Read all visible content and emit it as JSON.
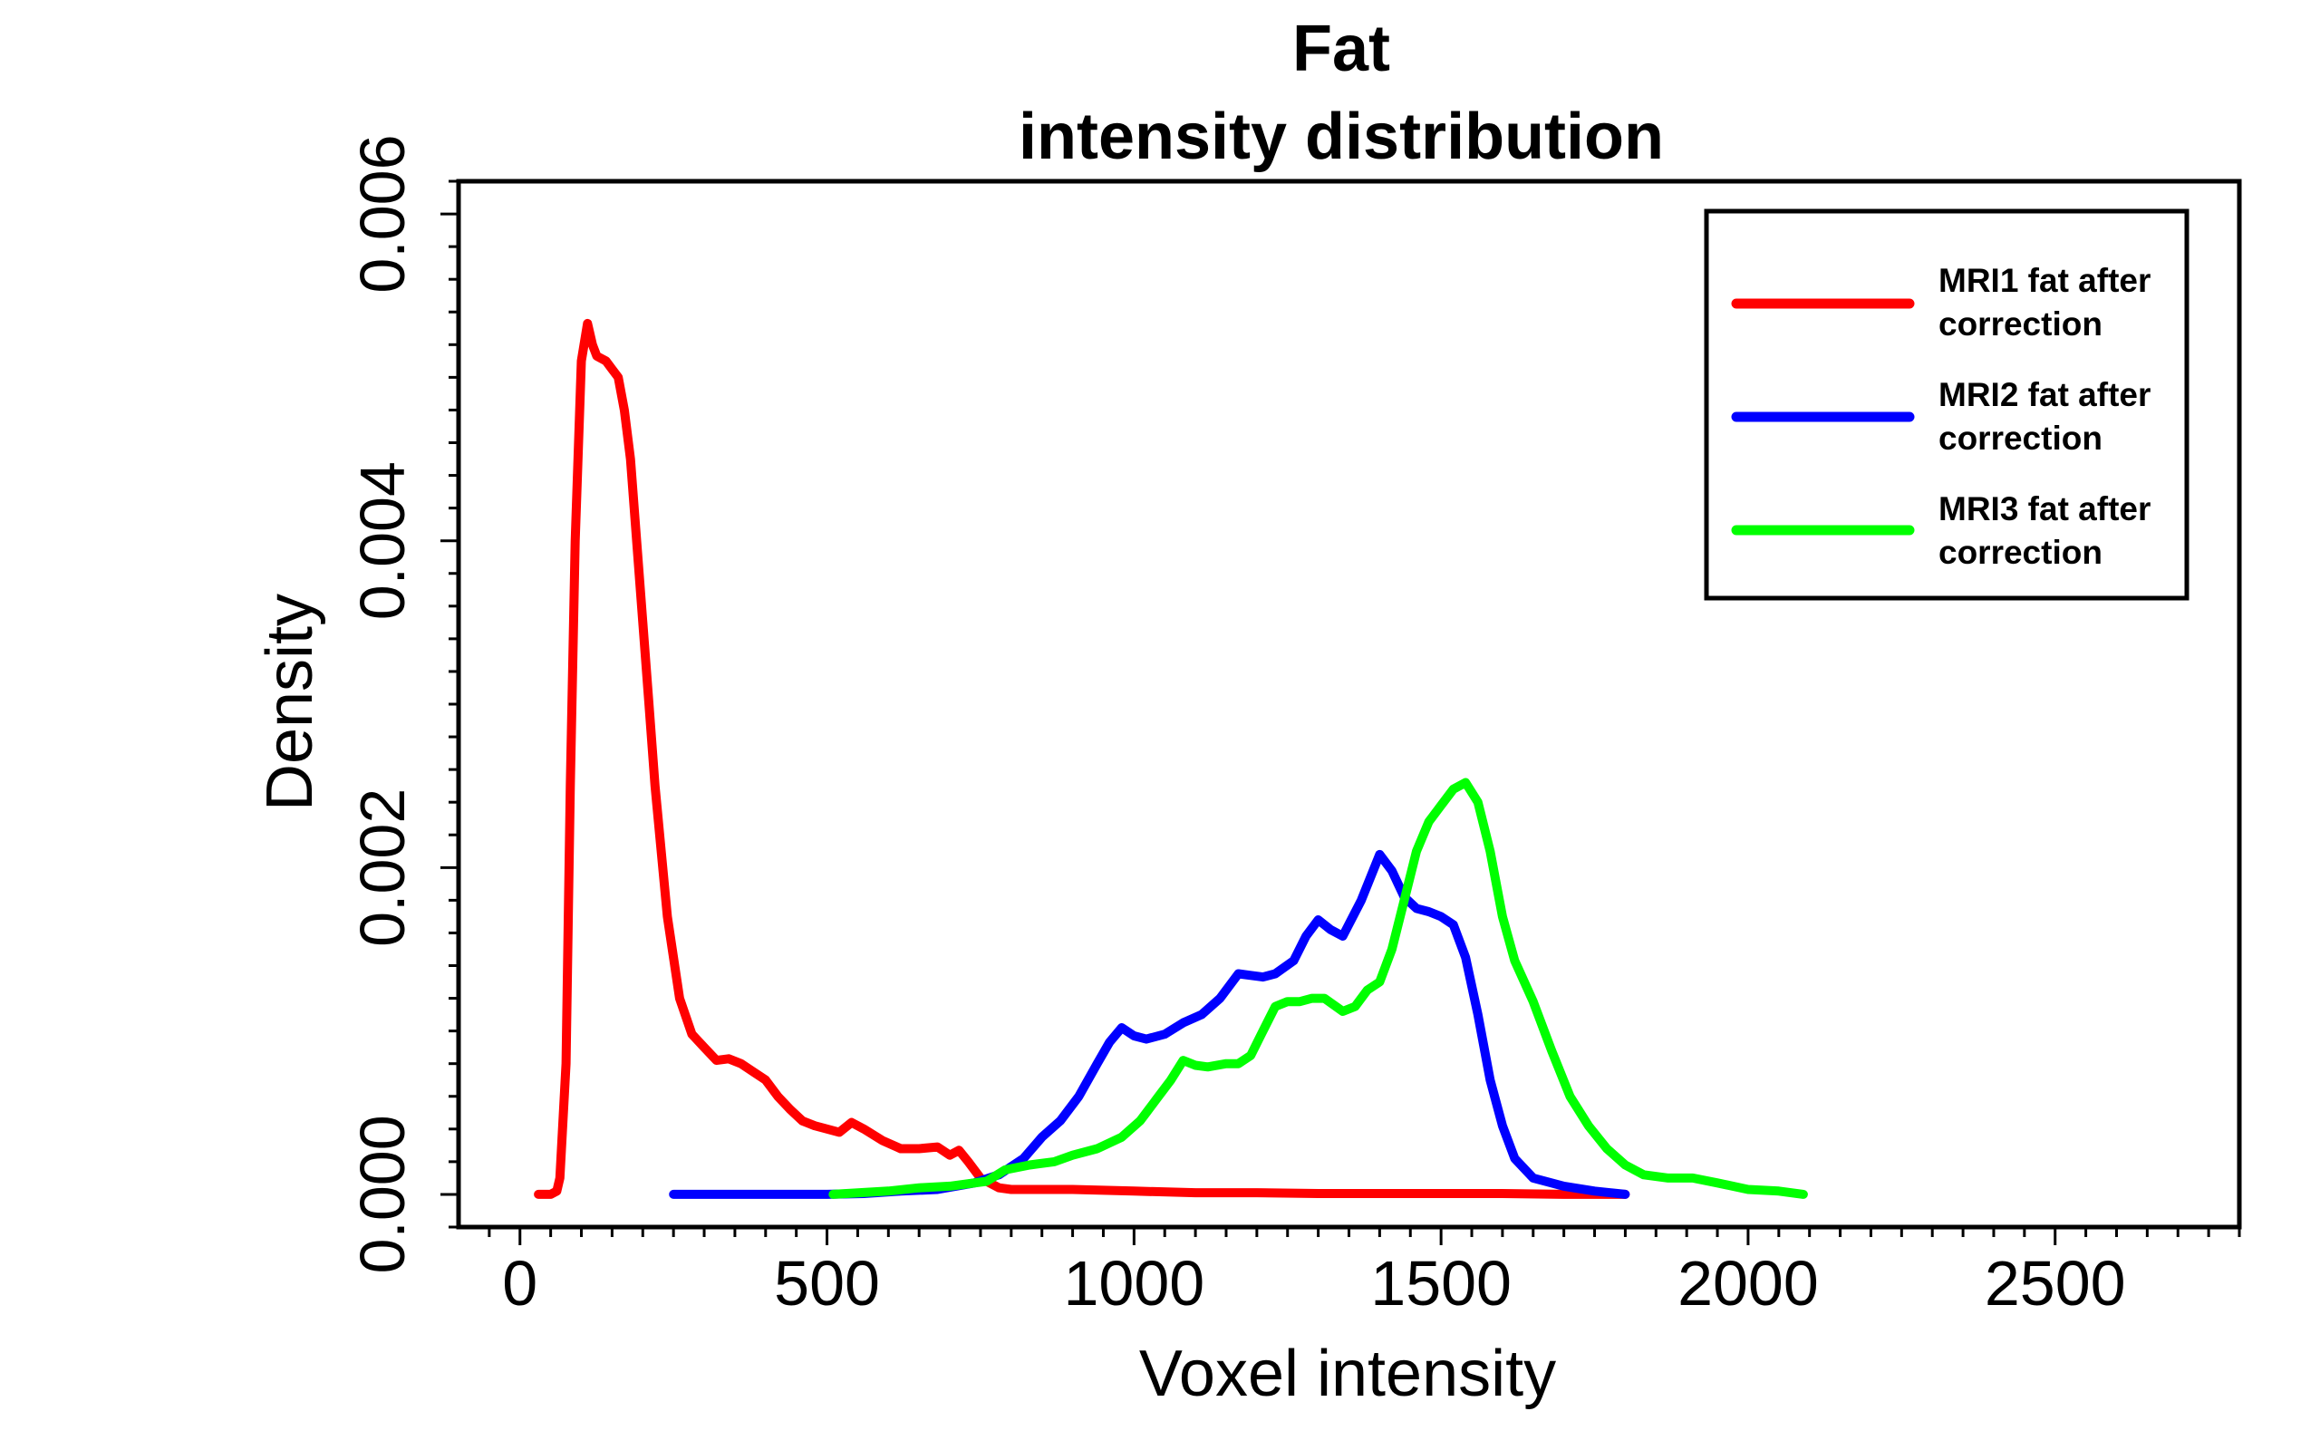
{
  "chart_data": {
    "type": "line",
    "title_line1": "Fat",
    "title_line2": "intensity distribution",
    "xlabel": "Voxel intensity",
    "ylabel": "Density",
    "xlim": [
      -100,
      2800
    ],
    "ylim": [
      -0.0002,
      0.0062
    ],
    "x_ticks": [
      0,
      500,
      1000,
      1500,
      2000,
      2500
    ],
    "x_tick_labels": [
      "0",
      "500",
      "1000",
      "1500",
      "2000",
      "2500"
    ],
    "y_ticks": [
      0.0,
      0.002,
      0.004,
      0.006
    ],
    "y_tick_labels": [
      "0.000",
      "0.002",
      "0.004",
      "0.006"
    ],
    "grid": false,
    "legend_position": "top-right",
    "series": [
      {
        "name_line1": "MRI1 fat after",
        "name_line2": "correction",
        "color": "#ff0000",
        "points": [
          [
            30,
            0
          ],
          [
            50,
            0
          ],
          [
            60,
            2e-05
          ],
          [
            65,
            0.0001
          ],
          [
            75,
            0.0008
          ],
          [
            82,
            0.0025
          ],
          [
            90,
            0.004
          ],
          [
            100,
            0.0051
          ],
          [
            110,
            0.00533
          ],
          [
            118,
            0.0052
          ],
          [
            125,
            0.00513
          ],
          [
            140,
            0.0051
          ],
          [
            150,
            0.00505
          ],
          [
            160,
            0.005
          ],
          [
            170,
            0.0048
          ],
          [
            180,
            0.0045
          ],
          [
            190,
            0.004
          ],
          [
            200,
            0.0035
          ],
          [
            210,
            0.003
          ],
          [
            220,
            0.0025
          ],
          [
            240,
            0.0017
          ],
          [
            260,
            0.0012
          ],
          [
            280,
            0.00098
          ],
          [
            300,
            0.0009
          ],
          [
            320,
            0.00082
          ],
          [
            340,
            0.00083
          ],
          [
            360,
            0.0008
          ],
          [
            380,
            0.00075
          ],
          [
            400,
            0.0007
          ],
          [
            420,
            0.0006
          ],
          [
            440,
            0.00052
          ],
          [
            460,
            0.00045
          ],
          [
            480,
            0.00042
          ],
          [
            500,
            0.0004
          ],
          [
            520,
            0.00038
          ],
          [
            540,
            0.00044
          ],
          [
            560,
            0.0004
          ],
          [
            590,
            0.00033
          ],
          [
            620,
            0.00028
          ],
          [
            650,
            0.00028
          ],
          [
            680,
            0.00029
          ],
          [
            700,
            0.00024
          ],
          [
            715,
            0.00027
          ],
          [
            730,
            0.0002
          ],
          [
            750,
            0.0001
          ],
          [
            780,
            4e-05
          ],
          [
            800,
            3e-05
          ],
          [
            850,
            3e-05
          ],
          [
            900,
            3e-05
          ],
          [
            1000,
            2e-05
          ],
          [
            1100,
            1e-05
          ],
          [
            1200,
            1e-05
          ],
          [
            1300,
            5e-06
          ],
          [
            1400,
            5e-06
          ],
          [
            1500,
            5e-06
          ],
          [
            1600,
            5e-06
          ],
          [
            1700,
            0
          ],
          [
            1800,
            0
          ]
        ]
      },
      {
        "name_line1": "MRI2 fat after",
        "name_line2": "correction",
        "color": "#0000ff",
        "points": [
          [
            250,
            0
          ],
          [
            400,
            0
          ],
          [
            500,
            0
          ],
          [
            560,
            5e-06
          ],
          [
            620,
            2e-05
          ],
          [
            680,
            3e-05
          ],
          [
            740,
            7e-05
          ],
          [
            780,
            0.00012
          ],
          [
            820,
            0.00022
          ],
          [
            850,
            0.00035
          ],
          [
            880,
            0.00045
          ],
          [
            910,
            0.0006
          ],
          [
            940,
            0.0008
          ],
          [
            960,
            0.00093
          ],
          [
            980,
            0.00102
          ],
          [
            1000,
            0.00097
          ],
          [
            1020,
            0.00095
          ],
          [
            1050,
            0.00098
          ],
          [
            1080,
            0.00105
          ],
          [
            1110,
            0.0011
          ],
          [
            1140,
            0.0012
          ],
          [
            1170,
            0.00135
          ],
          [
            1190,
            0.00134
          ],
          [
            1210,
            0.00133
          ],
          [
            1230,
            0.00135
          ],
          [
            1260,
            0.00143
          ],
          [
            1280,
            0.00158
          ],
          [
            1300,
            0.00168
          ],
          [
            1320,
            0.00162
          ],
          [
            1340,
            0.00158
          ],
          [
            1370,
            0.0018
          ],
          [
            1400,
            0.00208
          ],
          [
            1420,
            0.00198
          ],
          [
            1440,
            0.00182
          ],
          [
            1460,
            0.00175
          ],
          [
            1480,
            0.00173
          ],
          [
            1500,
            0.0017
          ],
          [
            1520,
            0.00165
          ],
          [
            1540,
            0.00145
          ],
          [
            1560,
            0.0011
          ],
          [
            1580,
            0.0007
          ],
          [
            1600,
            0.00042
          ],
          [
            1620,
            0.00022
          ],
          [
            1650,
            0.0001
          ],
          [
            1700,
            5e-05
          ],
          [
            1750,
            2e-05
          ],
          [
            1800,
            0
          ]
        ]
      },
      {
        "name_line1": "MRI3 fat after",
        "name_line2": "correction",
        "color": "#00ff00",
        "points": [
          [
            510,
            0
          ],
          [
            600,
            2e-05
          ],
          [
            650,
            4e-05
          ],
          [
            700,
            5e-05
          ],
          [
            760,
            8e-05
          ],
          [
            790,
            0.00015
          ],
          [
            830,
            0.00018
          ],
          [
            870,
            0.0002
          ],
          [
            900,
            0.00024
          ],
          [
            940,
            0.00028
          ],
          [
            980,
            0.00035
          ],
          [
            1010,
            0.00045
          ],
          [
            1040,
            0.0006
          ],
          [
            1060,
            0.0007
          ],
          [
            1080,
            0.00082
          ],
          [
            1100,
            0.00079
          ],
          [
            1120,
            0.00078
          ],
          [
            1150,
            0.0008
          ],
          [
            1170,
            0.0008
          ],
          [
            1190,
            0.00085
          ],
          [
            1210,
            0.001
          ],
          [
            1230,
            0.00115
          ],
          [
            1250,
            0.00118
          ],
          [
            1270,
            0.00118
          ],
          [
            1290,
            0.0012
          ],
          [
            1310,
            0.0012
          ],
          [
            1340,
            0.00112
          ],
          [
            1360,
            0.00115
          ],
          [
            1380,
            0.00125
          ],
          [
            1400,
            0.0013
          ],
          [
            1420,
            0.0015
          ],
          [
            1440,
            0.0018
          ],
          [
            1460,
            0.0021
          ],
          [
            1480,
            0.00228
          ],
          [
            1500,
            0.00238
          ],
          [
            1520,
            0.00248
          ],
          [
            1540,
            0.00252
          ],
          [
            1560,
            0.0024
          ],
          [
            1580,
            0.0021
          ],
          [
            1600,
            0.0017
          ],
          [
            1620,
            0.00143
          ],
          [
            1650,
            0.00118
          ],
          [
            1680,
            0.00088
          ],
          [
            1710,
            0.0006
          ],
          [
            1740,
            0.00042
          ],
          [
            1770,
            0.00028
          ],
          [
            1800,
            0.00018
          ],
          [
            1830,
            0.00012
          ],
          [
            1870,
            0.0001
          ],
          [
            1910,
            0.0001
          ],
          [
            1950,
            7e-05
          ],
          [
            2000,
            3e-05
          ],
          [
            2050,
            2e-05
          ],
          [
            2090,
            0
          ]
        ]
      }
    ]
  }
}
